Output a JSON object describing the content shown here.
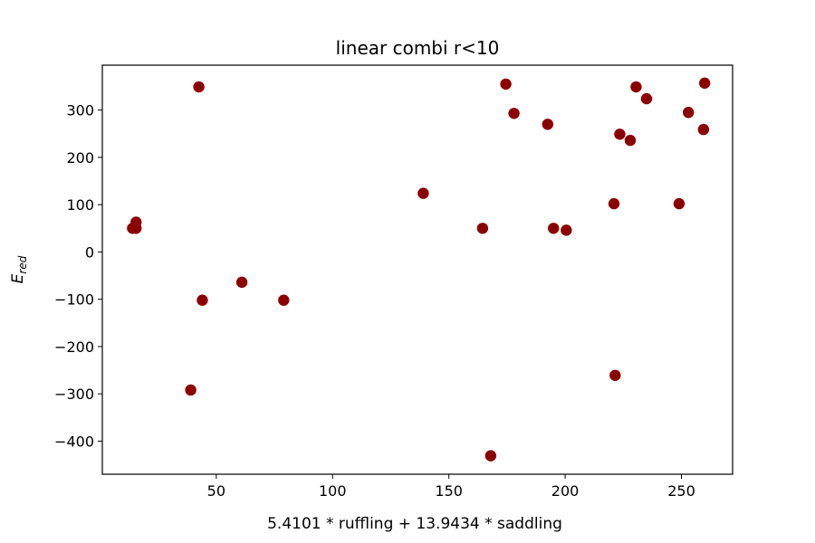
{
  "chart_data": {
    "type": "scatter",
    "title": "linear combi r<10",
    "xlabel": "5.4101 * ruffling + 13.9434 * saddling",
    "ylabel_main": "E",
    "ylabel_sub": "red",
    "xlim": [
      1,
      272
    ],
    "ylim": [
      -470,
      395
    ],
    "x_ticks": [
      50,
      100,
      150,
      200,
      250
    ],
    "y_ticks": [
      -400,
      -300,
      -200,
      -100,
      0,
      100,
      200,
      300
    ],
    "grid": false,
    "marker_color": "#8b0000",
    "points": [
      {
        "x": 14,
        "y": 50
      },
      {
        "x": 15.5,
        "y": 50
      },
      {
        "x": 15.5,
        "y": 63
      },
      {
        "x": 39,
        "y": -292
      },
      {
        "x": 42.5,
        "y": 349
      },
      {
        "x": 44,
        "y": -102
      },
      {
        "x": 61,
        "y": -64
      },
      {
        "x": 79,
        "y": -102
      },
      {
        "x": 139,
        "y": 124
      },
      {
        "x": 164.5,
        "y": 50
      },
      {
        "x": 168,
        "y": -431
      },
      {
        "x": 174.5,
        "y": 355
      },
      {
        "x": 178,
        "y": 293
      },
      {
        "x": 192.5,
        "y": 270
      },
      {
        "x": 195,
        "y": 50
      },
      {
        "x": 200.5,
        "y": 46
      },
      {
        "x": 221,
        "y": 102
      },
      {
        "x": 221.5,
        "y": -261
      },
      {
        "x": 223.5,
        "y": 249
      },
      {
        "x": 228,
        "y": 236
      },
      {
        "x": 230.5,
        "y": 349
      },
      {
        "x": 235,
        "y": 324
      },
      {
        "x": 249,
        "y": 102
      },
      {
        "x": 253,
        "y": 295
      },
      {
        "x": 259.5,
        "y": 259
      },
      {
        "x": 260,
        "y": 357
      }
    ]
  }
}
